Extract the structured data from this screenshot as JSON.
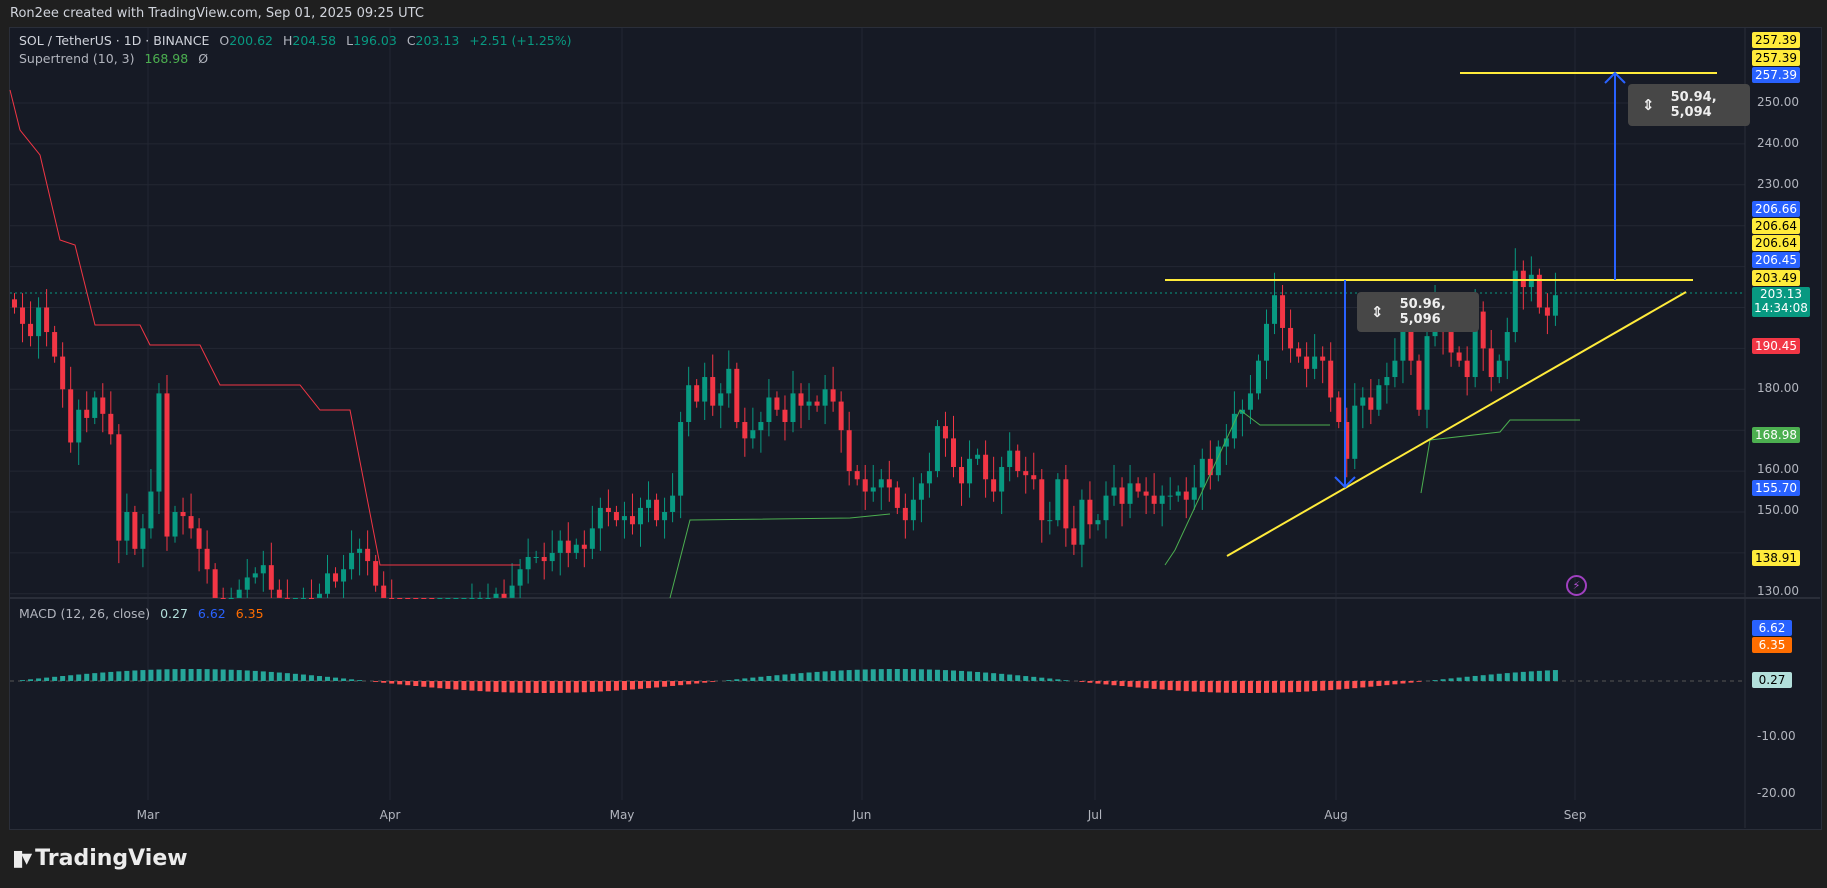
{
  "header": {
    "credit": "Ron2ee created with TradingView.com, Sep 01, 2025 09:25 UTC"
  },
  "legend": {
    "symbol": "SOL / TetherUS · 1D · BINANCE",
    "o_label": "O",
    "o": "200.62",
    "h_label": "H",
    "h": "204.58",
    "l_label": "L",
    "l": "196.03",
    "c_label": "C",
    "c": "203.13",
    "change": "+2.51 (+1.25%)",
    "supertrend_label": "Supertrend (10, 3)",
    "supertrend_value": "168.98",
    "supertrend_extra": "Ø",
    "macd_label": "MACD (12, 26, close)",
    "macd_hist": "0.27",
    "macd_line": "6.62",
    "macd_signal": "6.35"
  },
  "price_axis": {
    "ticks": [
      "250.00",
      "240.00",
      "230.00",
      "180.00",
      "160.00",
      "150.00",
      "130.00"
    ],
    "tags": [
      {
        "value": "257.39",
        "color": "#ffeb3b",
        "text": "#000"
      },
      {
        "value": "257.39",
        "color": "#ffeb3b",
        "text": "#000"
      },
      {
        "value": "257.39",
        "color": "#2962ff",
        "text": "#fff"
      },
      {
        "value": "206.66",
        "color": "#2962ff",
        "text": "#fff"
      },
      {
        "value": "206.64",
        "color": "#ffeb3b",
        "text": "#000"
      },
      {
        "value": "206.64",
        "color": "#ffeb3b",
        "text": "#000"
      },
      {
        "value": "206.45",
        "color": "#2962ff",
        "text": "#fff"
      },
      {
        "value": "203.49",
        "color": "#ffeb3b",
        "text": "#000"
      },
      {
        "value": "190.45",
        "color": "#f23645",
        "text": "#fff"
      },
      {
        "value": "168.98",
        "color": "#4caf50",
        "text": "#fff"
      },
      {
        "value": "155.70",
        "color": "#2962ff",
        "text": "#fff"
      },
      {
        "value": "138.91",
        "color": "#ffeb3b",
        "text": "#000"
      }
    ],
    "last_price": "203.13",
    "countdown": "14:34:08"
  },
  "macd_axis": {
    "ticks": [
      "-10.00",
      "-20.00"
    ],
    "tags": [
      {
        "value": "6.62",
        "color": "#2962ff",
        "text": "#fff"
      },
      {
        "value": "6.35",
        "color": "#ff6d00",
        "text": "#fff"
      },
      {
        "value": "0.27",
        "color": "#b2dfdb",
        "text": "#000"
      }
    ]
  },
  "time_axis": {
    "months": [
      "Mar",
      "Apr",
      "May",
      "Jun",
      "Jul",
      "Aug",
      "Sep"
    ]
  },
  "measures": [
    {
      "label": "50.96, 5,096",
      "direction": "down"
    },
    {
      "label": "50.94, 5,094",
      "direction": "up"
    }
  ],
  "branding": {
    "logo_text": "TradingView"
  },
  "colors": {
    "up": "#089981",
    "down": "#f23645",
    "line_yellow": "#ffeb3b",
    "arrow_blue": "#2962ff",
    "macd": "#2962ff",
    "signal": "#ff6d00"
  },
  "chart_data": {
    "type": "candlestick",
    "title": "SOL / TetherUS · 1D · BINANCE",
    "x_range": [
      "2025-02-12",
      "2025-09-01"
    ],
    "ylim": [
      128,
      262
    ],
    "resistance_level": 206.64,
    "target_level": 257.39,
    "measured_move": 50.94,
    "ascending_trendline": {
      "from": [
        "2025-07-20",
        138.91
      ],
      "to": [
        "2025-09-12",
        203.49
      ]
    },
    "closes": [
      200,
      196,
      193,
      200,
      194,
      188,
      180,
      167,
      175,
      173,
      178,
      174,
      169,
      143,
      150,
      141,
      146,
      155,
      179,
      144,
      150,
      149,
      146,
      141,
      136,
      128,
      124,
      126,
      131,
      134,
      135,
      137,
      131,
      129,
      126,
      127,
      128,
      125,
      130,
      135,
      133,
      136,
      140,
      141,
      138,
      132,
      128,
      126,
      124,
      123,
      122,
      120,
      117,
      121,
      122,
      124,
      125,
      127,
      128,
      128,
      130,
      129,
      132,
      136,
      139,
      139,
      138,
      140,
      143,
      140,
      142,
      141,
      146,
      151,
      150,
      148,
      149,
      147,
      151,
      153,
      148,
      150,
      154,
      172,
      181,
      177,
      183,
      176,
      179,
      185,
      172,
      168,
      170,
      172,
      178,
      175,
      172,
      179,
      176,
      177,
      176,
      180,
      177,
      170,
      160,
      158,
      155,
      156,
      158,
      156,
      151,
      148,
      153,
      157,
      160,
      171,
      168,
      161,
      157,
      163,
      164,
      158,
      155,
      161,
      165,
      160,
      159,
      158,
      148,
      148,
      158,
      146,
      142,
      153,
      147,
      148,
      154,
      156,
      152,
      157,
      155,
      154,
      152,
      154,
      154,
      155,
      153,
      156,
      163,
      159,
      166,
      168,
      174,
      175,
      179,
      187,
      196,
      203,
      195,
      190,
      188,
      185,
      188,
      187,
      178,
      172,
      163,
      176,
      178,
      175,
      181,
      183,
      187,
      197,
      187,
      175,
      193,
      200,
      194,
      189,
      187,
      183,
      199,
      190,
      183,
      187,
      194,
      209,
      205,
      208,
      200,
      198,
      203
    ],
    "supertrend": {
      "last": 168.98
    }
  }
}
